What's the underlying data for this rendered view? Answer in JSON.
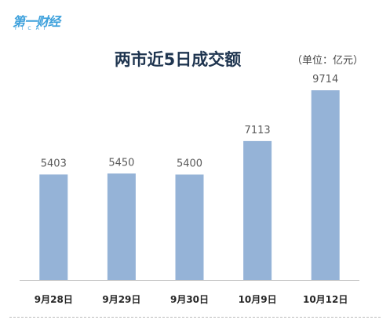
{
  "header": {
    "logo_text": "第一财经",
    "logo_sub": "YICAI"
  },
  "chart_data": {
    "type": "bar",
    "title": "两市近5日成交额",
    "unit_label": "（单位：亿元）",
    "categories": [
      "9月28日",
      "9月29日",
      "9月30日",
      "10月9日",
      "10月12日"
    ],
    "values": [
      5403,
      5450,
      5400,
      7113,
      9714
    ],
    "ylim": [
      0,
      10000
    ],
    "bar_color": "#95b3d7",
    "grid": false,
    "data_labels": true
  }
}
